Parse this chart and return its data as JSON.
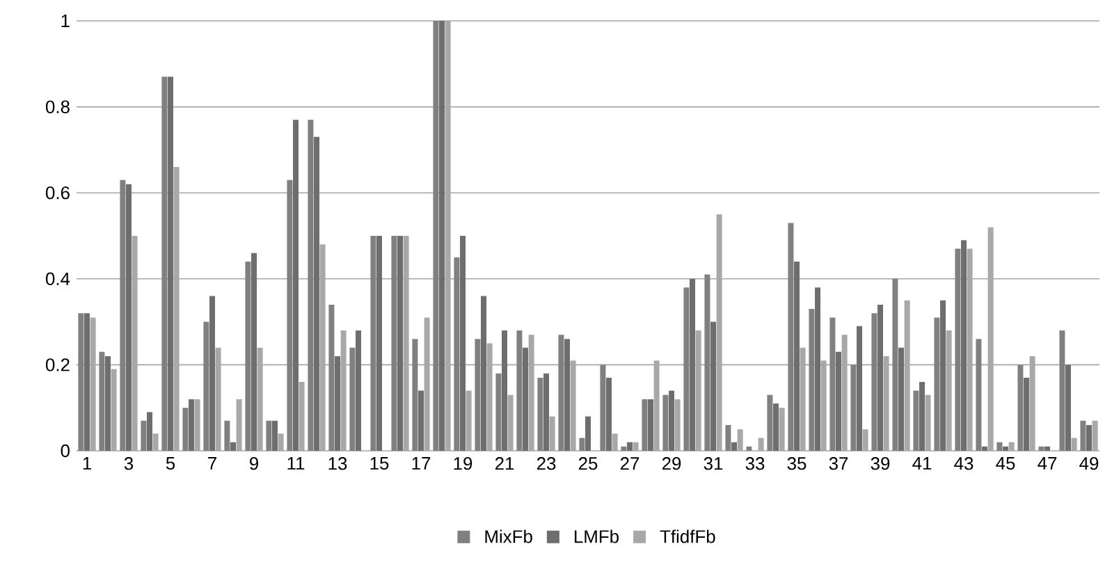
{
  "chart_data": {
    "type": "bar",
    "categories": [
      "1",
      null,
      "3",
      null,
      "5",
      null,
      "7",
      null,
      "9",
      null,
      "11",
      null,
      "13",
      null,
      "15",
      null,
      "17",
      null,
      "19",
      null,
      "21",
      null,
      "23",
      null,
      "25",
      null,
      "27",
      null,
      "29",
      null,
      "31",
      null,
      "33",
      null,
      "35",
      null,
      "37",
      null,
      "39",
      null,
      "41",
      null,
      "43",
      null,
      "45",
      null,
      "47",
      null,
      "49"
    ],
    "series": [
      {
        "name": "MixFb",
        "color": "#808080",
        "values": [
          0.32,
          0.23,
          0.63,
          0.07,
          0.87,
          0.1,
          0.3,
          0.07,
          0.44,
          0.07,
          0.63,
          0.77,
          0.34,
          0.24,
          0.5,
          0.5,
          0.26,
          1.0,
          0.45,
          0.26,
          0.18,
          0.28,
          0.17,
          0.27,
          0.03,
          0.2,
          0.01,
          0.12,
          0.13,
          0.38,
          0.41,
          0.06,
          0.01,
          0.13,
          0.53,
          0.33,
          0.31,
          0.2,
          0.32,
          0.4,
          0.14,
          0.31,
          0.47,
          0.26,
          0.02,
          0.2,
          0.01,
          0.28,
          0.07
        ]
      },
      {
        "name": "LMFb",
        "color": "#6e6e6e",
        "values": [
          0.32,
          0.22,
          0.62,
          0.09,
          0.87,
          0.12,
          0.36,
          0.02,
          0.46,
          0.07,
          0.77,
          0.73,
          0.22,
          0.28,
          0.5,
          0.5,
          0.14,
          1.0,
          0.5,
          0.36,
          0.28,
          0.24,
          0.18,
          0.26,
          0.08,
          0.17,
          0.02,
          0.12,
          0.14,
          0.4,
          0.3,
          0.02,
          0.0,
          0.11,
          0.44,
          0.38,
          0.23,
          0.29,
          0.34,
          0.24,
          0.16,
          0.35,
          0.49,
          0.01,
          0.01,
          0.17,
          0.01,
          0.2,
          0.06
        ]
      },
      {
        "name": "TfidfFb",
        "color": "#a8a8a8",
        "values": [
          0.31,
          0.19,
          0.5,
          0.04,
          0.66,
          0.12,
          0.24,
          0.12,
          0.24,
          0.04,
          0.16,
          0.48,
          0.28,
          0.0,
          0.0,
          0.5,
          0.31,
          1.0,
          0.14,
          0.25,
          0.13,
          0.27,
          0.08,
          0.21,
          0.0,
          0.04,
          0.02,
          0.21,
          0.12,
          0.28,
          0.55,
          0.05,
          0.03,
          0.1,
          0.24,
          0.21,
          0.27,
          0.05,
          0.22,
          0.35,
          0.13,
          0.28,
          0.47,
          0.52,
          0.02,
          0.22,
          0.0,
          0.03,
          0.07
        ]
      }
    ],
    "ylim": [
      0,
      1
    ],
    "yticks": [
      0,
      0.2,
      0.4,
      0.6,
      0.8,
      1
    ],
    "grid": "y",
    "legend": "bottom"
  }
}
